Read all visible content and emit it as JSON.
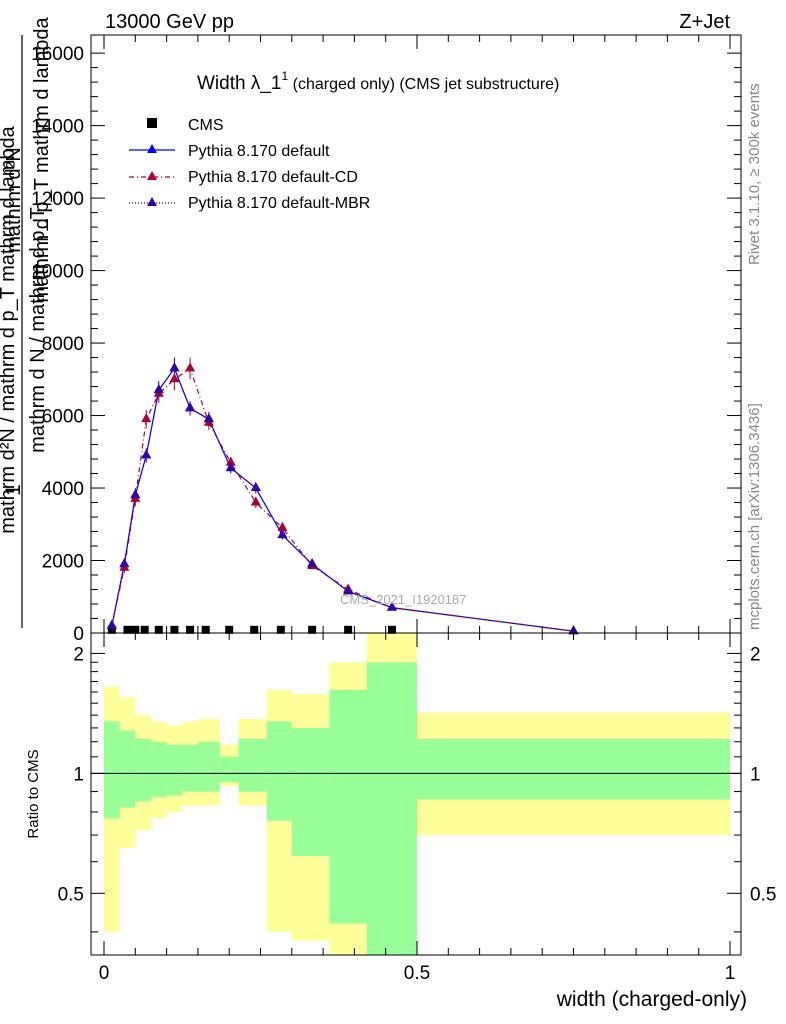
{
  "header": {
    "left": "13000 GeV pp",
    "right": "Z+Jet"
  },
  "side_labels": {
    "rivet": "Rivet 3.1.10, ≥ 300k events",
    "mcplots": "mcplots.cern.ch [arXiv:1306.3436]"
  },
  "watermark": "CMS_2021_I1920187",
  "chart_data": [
    {
      "type": "line",
      "title": {
        "main": "Width λ_1",
        "sup": "1",
        "rest": " (charged only) (CMS jet substructure)"
      },
      "ylabel": {
        "prefix": "1",
        "denominator": "mathrm d N / mathrm d p_T",
        "numerator": "mathrm d²N / mathrm d p_T mathrm d lambda",
        "overlay_numerator": "mathrm d²N",
        "overlay_denominator": "mathrm d p_T mathrm d lambda"
      },
      "xlim": [
        0,
        1
      ],
      "ylim": [
        0,
        16500
      ],
      "yticks": [
        0,
        2000,
        4000,
        6000,
        8000,
        10000,
        12000,
        14000,
        16000
      ],
      "ytick_labels": [
        "0",
        "2000",
        "4000",
        "6000",
        "8000",
        "10000",
        "12000",
        "14000",
        "16000"
      ],
      "legend_position": "top-left",
      "series": [
        {
          "name": "CMS",
          "color": "#000000",
          "style": "square-marker",
          "x": [
            0.0125,
            0.0375,
            0.05,
            0.065,
            0.0875,
            0.1125,
            0.1375,
            0.1625,
            0.2,
            0.24,
            0.2825,
            0.3325,
            0.39,
            0.46
          ],
          "y": [
            5,
            5,
            5,
            5,
            5,
            5,
            5,
            5,
            5,
            5,
            5,
            5,
            5,
            5
          ]
        },
        {
          "name": "Pythia 8.170 default",
          "color": "#0000ff",
          "style": "solid",
          "x": [
            0.0125,
            0.0325,
            0.05,
            0.0675,
            0.0875,
            0.1125,
            0.1375,
            0.1675,
            0.2025,
            0.2425,
            0.285,
            0.3325,
            0.39,
            0.46,
            0.75
          ],
          "y": [
            200,
            1900,
            3800,
            4900,
            6700,
            7300,
            6200,
            5900,
            4550,
            4000,
            2700,
            1900,
            1150,
            700,
            50
          ],
          "err": [
            80,
            150,
            200,
            200,
            250,
            300,
            200,
            200,
            150,
            150,
            120,
            100,
            80,
            50,
            20
          ]
        },
        {
          "name": "Pythia 8.170 default-CD",
          "color": "#aa0033",
          "style": "dash-dot",
          "x": [
            0.0125,
            0.0325,
            0.05,
            0.0675,
            0.0875,
            0.1125,
            0.1375,
            0.1675,
            0.2025,
            0.2425,
            0.285,
            0.3325,
            0.39,
            0.46,
            0.75
          ],
          "y": [
            200,
            1800,
            3700,
            5900,
            6600,
            7000,
            7300,
            5800,
            4700,
            3600,
            2900,
            1850,
            1200,
            700,
            50
          ],
          "err": [
            80,
            150,
            200,
            250,
            250,
            300,
            300,
            200,
            150,
            150,
            150,
            100,
            80,
            50,
            20
          ]
        },
        {
          "name": "Pythia 8.170 default-MBR",
          "color": "#3300aa",
          "style": "dotted",
          "x": [
            0.0125,
            0.0325,
            0.05,
            0.0675,
            0.0875,
            0.1125,
            0.1375,
            0.1675,
            0.2025,
            0.2425,
            0.285,
            0.3325,
            0.39,
            0.46,
            0.75
          ],
          "y": [
            200,
            1900,
            3800,
            4900,
            6700,
            7300,
            6200,
            5900,
            4550,
            4000,
            2700,
            1900,
            1150,
            700,
            50
          ]
        }
      ]
    },
    {
      "type": "area",
      "ylabel": "Ratio to CMS",
      "xlabel": "width (charged-only)",
      "xlim": [
        0,
        1
      ],
      "ylim": [
        0.35,
        2.25
      ],
      "yticks": [
        0.5,
        1,
        2
      ],
      "ytick_labels": [
        "0.5",
        "1",
        "2"
      ],
      "xticks": [
        0,
        0.5,
        1
      ],
      "xtick_labels": [
        "0",
        "0.5",
        "1"
      ],
      "reference_line": 1,
      "bins": [
        0,
        0.025,
        0.05,
        0.075,
        0.1,
        0.125,
        0.15,
        0.185,
        0.215,
        0.26,
        0.3,
        0.36,
        0.42,
        0.5,
        1.0
      ],
      "green_band": [
        [
          0.77,
          1.35
        ],
        [
          0.82,
          1.28
        ],
        [
          0.85,
          1.22
        ],
        [
          0.87,
          1.2
        ],
        [
          0.88,
          1.18
        ],
        [
          0.9,
          1.18
        ],
        [
          0.9,
          1.2
        ],
        [
          0.95,
          1.1
        ],
        [
          0.9,
          1.22
        ],
        [
          0.76,
          1.35
        ],
        [
          0.62,
          1.3
        ],
        [
          0.42,
          1.62
        ],
        [
          0.35,
          1.9
        ],
        [
          0.86,
          1.22
        ]
      ],
      "yellow_band": [
        [
          0.4,
          1.65
        ],
        [
          0.65,
          1.55
        ],
        [
          0.72,
          1.4
        ],
        [
          0.77,
          1.35
        ],
        [
          0.8,
          1.32
        ],
        [
          0.83,
          1.35
        ],
        [
          0.83,
          1.37
        ],
        [
          0.93,
          1.18
        ],
        [
          0.83,
          1.37
        ],
        [
          0.4,
          1.62
        ],
        [
          0.38,
          1.58
        ],
        [
          0.35,
          1.9
        ],
        [
          0.35,
          2.25
        ],
        [
          0.7,
          1.42
        ]
      ],
      "band_colors": {
        "green": "#99ff99",
        "yellow": "#ffff99"
      }
    }
  ]
}
